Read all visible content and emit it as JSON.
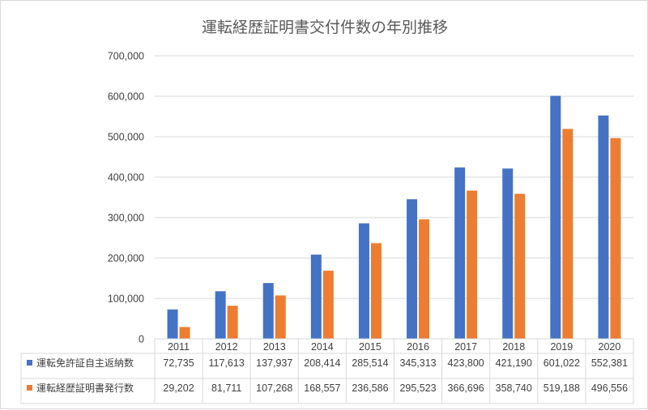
{
  "chart_data": {
    "type": "bar",
    "title": "運転経歴証明書交付件数の年別推移",
    "categories": [
      "2011",
      "2012",
      "2013",
      "2014",
      "2015",
      "2016",
      "2017",
      "2018",
      "2019",
      "2020"
    ],
    "series": [
      {
        "name": "運転免許証自主返納数",
        "color": "#4472C4",
        "values": [
          72735,
          117613,
          137937,
          208414,
          285514,
          345313,
          423800,
          421190,
          601022,
          552381
        ],
        "labels": [
          "72,735",
          "117,613",
          "137,937",
          "208,414",
          "285,514",
          "345,313",
          "423,800",
          "421,190",
          "601,022",
          "552,381"
        ]
      },
      {
        "name": "運転経歴証明書発行数",
        "color": "#ED7D31",
        "values": [
          29202,
          81711,
          107268,
          168557,
          236586,
          295523,
          366696,
          358740,
          519188,
          496556
        ],
        "labels": [
          "29,202",
          "81,711",
          "107,268",
          "168,557",
          "236,586",
          "295,523",
          "366,696",
          "358,740",
          "519,188",
          "496,556"
        ]
      }
    ],
    "ylim": [
      0,
      700000
    ],
    "yticks": [
      0,
      100000,
      200000,
      300000,
      400000,
      500000,
      600000,
      700000
    ],
    "ytick_labels": [
      "0",
      "100,000",
      "200,000",
      "300,000",
      "400,000",
      "500,000",
      "600,000",
      "700,000"
    ],
    "grid": true,
    "legend": "data-table"
  }
}
